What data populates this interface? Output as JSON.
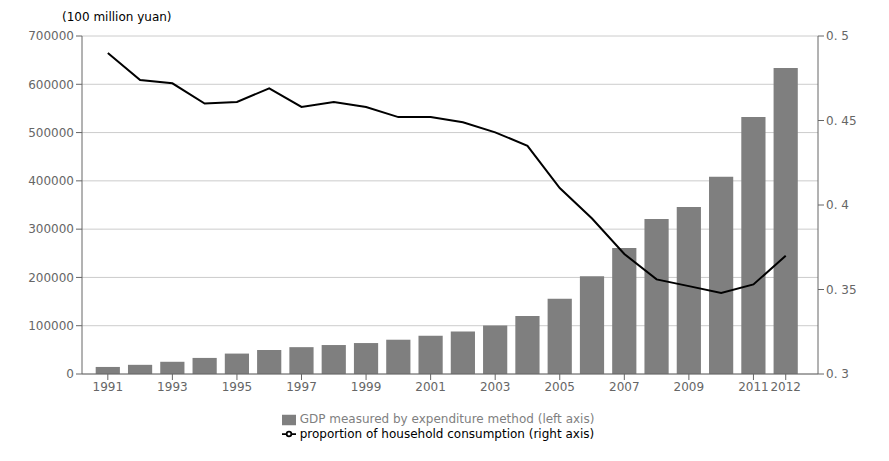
{
  "chart_data": {
    "type": "bar",
    "ylabel": "(100 million yuan)",
    "x": [
      1991,
      1992,
      1993,
      1994,
      1995,
      1996,
      1997,
      1998,
      1999,
      2000,
      2001,
      2002,
      2003,
      2004,
      2005,
      2006,
      2007,
      2008,
      2009,
      2010,
      2011,
      2012
    ],
    "xlim": [
      1990.2,
      2013.0
    ],
    "xticks": [
      1991,
      1993,
      1995,
      1997,
      1999,
      2001,
      2003,
      2005,
      2007,
      2009,
      2011,
      2012
    ],
    "ylim": [
      0,
      700000
    ],
    "yticks": [
      0,
      100000,
      200000,
      300000,
      400000,
      500000,
      600000,
      700000
    ],
    "y2lim": [
      0.3,
      0.5
    ],
    "y2ticks": [
      {
        "value": 0.3,
        "label": "0. 3"
      },
      {
        "value": 0.35,
        "label": "0. 35"
      },
      {
        "value": 0.4,
        "label": "0. 4"
      },
      {
        "value": 0.45,
        "label": "0. 45"
      },
      {
        "value": 0.5,
        "label": "0. 5"
      }
    ],
    "grid": true,
    "legend": "bottom",
    "series": [
      {
        "name": "GDP measured by expenditure method (left axis)",
        "type": "bar",
        "color": "#7f7f7f",
        "values": [
          14600,
          19000,
          25300,
          33300,
          42300,
          49600,
          55600,
          60000,
          64100,
          71000,
          79200,
          88000,
          100200,
          120200,
          155700,
          202600,
          261000,
          320900,
          345900,
          408700,
          532500,
          633700
        ]
      },
      {
        "name": "proportion of household consumption (right axis)",
        "type": "line",
        "color": "#000000",
        "axis": "y2",
        "values": [
          0.49,
          0.474,
          0.472,
          0.46,
          0.461,
          0.469,
          0.458,
          0.461,
          0.458,
          0.452,
          0.452,
          0.449,
          0.443,
          0.435,
          0.41,
          0.392,
          0.371,
          0.356,
          0.352,
          0.348,
          0.353,
          0.37
        ]
      }
    ]
  }
}
